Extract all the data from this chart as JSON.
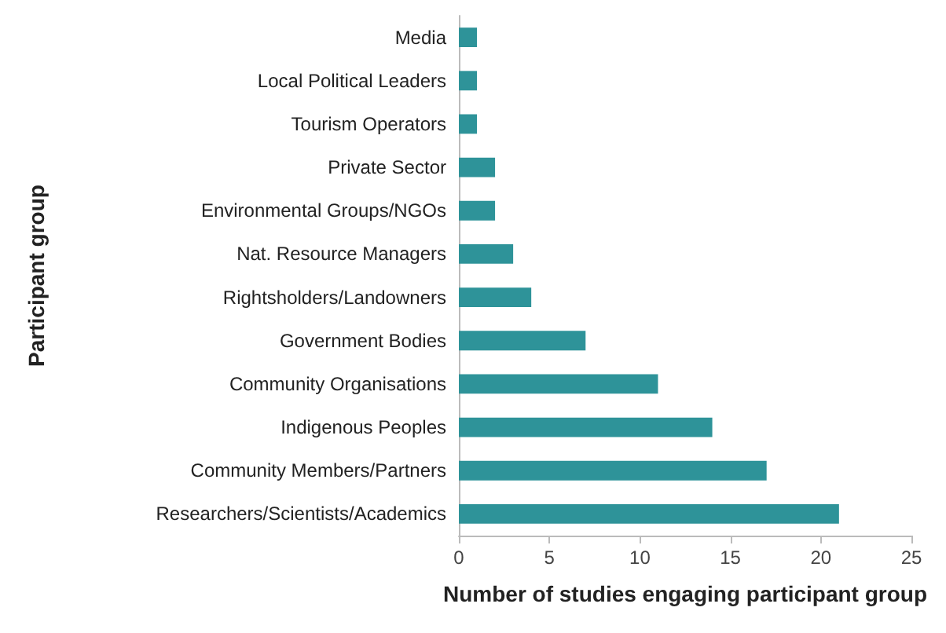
{
  "chart_data": {
    "type": "bar",
    "orientation": "horizontal",
    "xlabel": "Number of studies engaging participant group",
    "ylabel": "Participant group",
    "categories": [
      "Media",
      "Local Political Leaders",
      "Tourism Operators",
      "Private Sector",
      "Environmental Groups/NGOs",
      "Nat. Resource Managers",
      "Rightsholders/Landowners",
      "Government Bodies",
      "Community Organisations",
      "Indigenous Peoples",
      "Community Members/Partners",
      "Researchers/Scientists/Academics"
    ],
    "values": [
      1,
      1,
      1,
      2,
      2,
      3,
      4,
      7,
      11,
      14,
      17,
      21
    ],
    "color": "#2e9399",
    "xlim": [
      0,
      25
    ],
    "xticks": [
      0,
      5,
      10,
      15,
      20,
      25
    ],
    "grid": false
  }
}
